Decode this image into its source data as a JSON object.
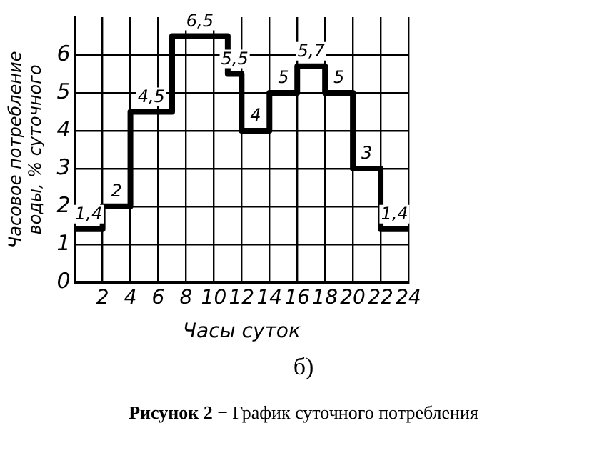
{
  "chart_data": {
    "type": "step",
    "xlabel": "Часы суток",
    "ylabel": "Часовое потребление воды, % суточного",
    "x": [
      0,
      2,
      4,
      7,
      11,
      12,
      14,
      16,
      18,
      20,
      22,
      24
    ],
    "values": [
      1.4,
      2,
      4.5,
      6.5,
      5.5,
      4,
      5,
      5.7,
      5,
      3,
      1.4,
      1.4
    ],
    "value_labels": [
      "1,4",
      "2",
      "4,5",
      "6,5",
      "5,5",
      "4",
      "5",
      "5,7",
      "5",
      "3",
      "1,4",
      null
    ],
    "color": "#000000",
    "xlim": [
      0,
      24
    ],
    "xticks": [
      2,
      4,
      6,
      8,
      10,
      12,
      14,
      16,
      18,
      20,
      22,
      24
    ],
    "ylim": [
      0,
      7
    ],
    "yticks": [
      0,
      1,
      2,
      3,
      4,
      5,
      6
    ],
    "grid": true,
    "legend": false,
    "annotations": [
      "б)",
      "Рисунок 2 − График суточного потребления"
    ]
  }
}
